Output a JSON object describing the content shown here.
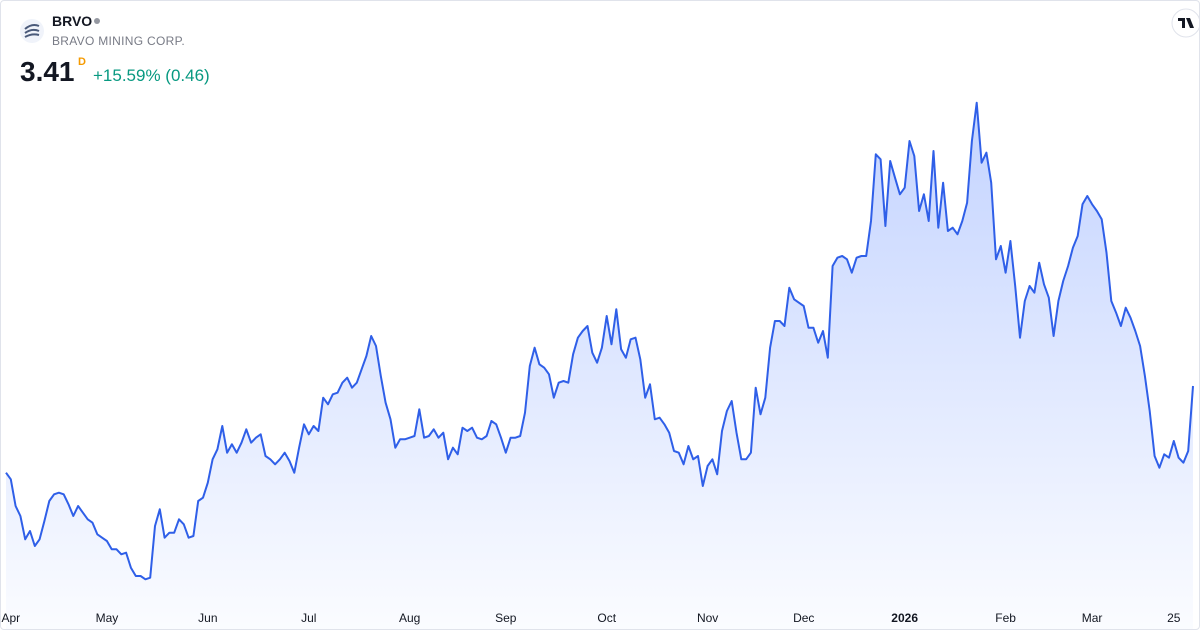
{
  "header": {
    "symbol": "BRVO",
    "company": "BRAVO MINING CORP.",
    "price": "3.41",
    "price_flag": "D",
    "change": "+15.59% (0.46)"
  },
  "chart_data": {
    "type": "area",
    "color": "#2f5fe8",
    "values": [
      2.89,
      2.85,
      2.69,
      2.63,
      2.49,
      2.54,
      2.45,
      2.49,
      2.6,
      2.72,
      2.76,
      2.77,
      2.76,
      2.7,
      2.63,
      2.69,
      2.65,
      2.61,
      2.59,
      2.52,
      2.5,
      2.48,
      2.43,
      2.43,
      2.4,
      2.41,
      2.32,
      2.27,
      2.27,
      2.25,
      2.26,
      2.57,
      2.67,
      2.5,
      2.53,
      2.53,
      2.61,
      2.58,
      2.5,
      2.51,
      2.72,
      2.74,
      2.83,
      2.97,
      3.03,
      3.17,
      3.01,
      3.06,
      3.01,
      3.07,
      3.15,
      3.07,
      3.1,
      3.12,
      2.99,
      2.97,
      2.94,
      2.97,
      3.01,
      2.96,
      2.89,
      3.04,
      3.18,
      3.12,
      3.17,
      3.14,
      3.34,
      3.3,
      3.36,
      3.37,
      3.43,
      3.46,
      3.4,
      3.43,
      3.51,
      3.59,
      3.71,
      3.65,
      3.47,
      3.31,
      3.21,
      3.04,
      3.09,
      3.09,
      3.1,
      3.11,
      3.27,
      3.1,
      3.11,
      3.15,
      3.1,
      3.13,
      2.97,
      3.04,
      3.0,
      3.16,
      3.14,
      3.16,
      3.1,
      3.09,
      3.11,
      3.2,
      3.18,
      3.1,
      3.01,
      3.1,
      3.1,
      3.11,
      3.25,
      3.53,
      3.64,
      3.54,
      3.52,
      3.48,
      3.34,
      3.43,
      3.44,
      3.43,
      3.6,
      3.7,
      3.74,
      3.77,
      3.61,
      3.55,
      3.64,
      3.83,
      3.66,
      3.87,
      3.63,
      3.58,
      3.69,
      3.7,
      3.57,
      3.34,
      3.42,
      3.21,
      3.22,
      3.18,
      3.13,
      3.02,
      3.01,
      2.94,
      3.05,
      2.97,
      2.99,
      2.81,
      2.93,
      2.97,
      2.88,
      3.14,
      3.26,
      3.32,
      3.13,
      2.97,
      2.97,
      3.01,
      3.4,
      3.24,
      3.34,
      3.64,
      3.8,
      3.8,
      3.77,
      4.0,
      3.93,
      3.91,
      3.89,
      3.76,
      3.76,
      3.67,
      3.74,
      3.58,
      4.13,
      4.18,
      4.19,
      4.17,
      4.09,
      4.18,
      4.19,
      4.19,
      4.4,
      4.8,
      4.77,
      4.37,
      4.76,
      4.66,
      4.56,
      4.6,
      4.88,
      4.79,
      4.46,
      4.56,
      4.4,
      4.82,
      4.36,
      4.63,
      4.34,
      4.36,
      4.32,
      4.4,
      4.51,
      4.88,
      5.11,
      4.75,
      4.81,
      4.63,
      4.17,
      4.25,
      4.09,
      4.28,
      4.01,
      3.7,
      3.92,
      4.01,
      3.97,
      4.15,
      4.02,
      3.94,
      3.71,
      3.92,
      4.04,
      4.13,
      4.24,
      4.31,
      4.5,
      4.55,
      4.5,
      4.46,
      4.41,
      4.21,
      3.92,
      3.85,
      3.77,
      3.88,
      3.82,
      3.74,
      3.65,
      3.47,
      3.26,
      2.99,
      2.92,
      3.0,
      2.98,
      3.08,
      2.98,
      2.95,
      3.02,
      3.41
    ],
    "xlim": [
      0,
      247
    ],
    "ylim": [
      2.12,
      5.72
    ],
    "xticks": [
      {
        "value": 1,
        "label": "Apr"
      },
      {
        "value": 21,
        "label": "May"
      },
      {
        "value": 42,
        "label": "Jun"
      },
      {
        "value": 63,
        "label": "Jul"
      },
      {
        "value": 84,
        "label": "Aug"
      },
      {
        "value": 104,
        "label": "Sep"
      },
      {
        "value": 125,
        "label": "Oct"
      },
      {
        "value": 146,
        "label": "Nov"
      },
      {
        "value": 166,
        "label": "Dec"
      },
      {
        "value": 187,
        "label": "2026",
        "bold": true
      },
      {
        "value": 208,
        "label": "Feb"
      },
      {
        "value": 226,
        "label": "Mar"
      },
      {
        "value": 243,
        "label": "25"
      }
    ]
  }
}
